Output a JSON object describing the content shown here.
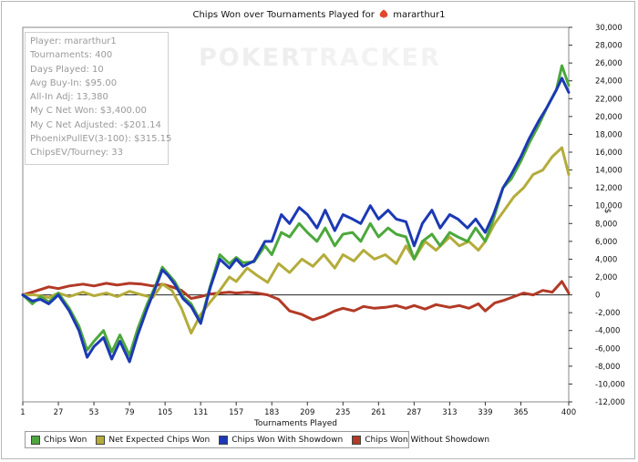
{
  "title": {
    "prefix": "Chips Won over Tournaments Played for",
    "player": "mararthur1"
  },
  "watermark": {
    "left": "POKER",
    "right": "TRACKER"
  },
  "stats": [
    "Player: mararthur1",
    "Tournaments: 400",
    "Days Played: 10",
    "Avg Buy-In: $95.00",
    "All-In Adj: 13,380",
    "My C Net Won: $3,400.00",
    "My C Net Adjusted: -$201.14",
    "PhoenixPullEV(3-100): $315.15",
    "ChipsEV/Tourney: 33"
  ],
  "legend": [
    {
      "label": "Chips Won",
      "color": "#4ca83c"
    },
    {
      "label": "Net Expected Chips Won",
      "color": "#b4ac3a"
    },
    {
      "label": "Chips Won With Showdown",
      "color": "#1c39b4"
    },
    {
      "label": "Chips Won Without Showdown",
      "color": "#b23a26"
    }
  ],
  "chart_data": {
    "type": "line",
    "xlabel": "Tournaments Played",
    "ylabel": "$",
    "xlim": [
      1,
      400
    ],
    "ylim": [
      -12000,
      30000
    ],
    "x_ticks": [
      1,
      27,
      53,
      79,
      105,
      131,
      157,
      183,
      209,
      235,
      261,
      287,
      313,
      339,
      365,
      400
    ],
    "y_ticks": [
      -12000,
      -10000,
      -8000,
      -6000,
      -4000,
      -2000,
      0,
      2000,
      4000,
      6000,
      8000,
      10000,
      12000,
      14000,
      16000,
      18000,
      20000,
      22000,
      24000,
      26000,
      28000,
      30000
    ],
    "y_tick_labels": [
      "-12,000",
      "-10,000",
      "-8,000",
      "-6,000",
      "-4,000",
      "-2,000",
      "0",
      "2,000",
      "4,000",
      "6,000",
      "8,000",
      "10,000",
      "12,000",
      "14,000",
      "16,000",
      "18,000",
      "20,000",
      "22,000",
      "24,000",
      "26,000",
      "28,000",
      "30,000"
    ],
    "grid": false,
    "legend_position": "bottom",
    "series": [
      {
        "name": "Chips Won",
        "color": "#4ca83c",
        "x": [
          1,
          8,
          14,
          20,
          27,
          35,
          42,
          48,
          53,
          60,
          66,
          72,
          79,
          85,
          92,
          98,
          103,
          107,
          112,
          118,
          124,
          131,
          138,
          145,
          152,
          157,
          162,
          170,
          178,
          183,
          190,
          196,
          203,
          209,
          216,
          222,
          229,
          235,
          242,
          248,
          255,
          261,
          268,
          274,
          281,
          287,
          293,
          300,
          306,
          313,
          319,
          326,
          332,
          339,
          345,
          352,
          358,
          365,
          371,
          378,
          384,
          391,
          395,
          400
        ],
        "y": [
          0,
          -1000,
          -200,
          -800,
          200,
          -1500,
          -3500,
          -6200,
          -5200,
          -4000,
          -6400,
          -4500,
          -6800,
          -3800,
          -1000,
          1000,
          3100,
          2400,
          1500,
          -200,
          -1000,
          -3000,
          1000,
          4500,
          3500,
          4200,
          3600,
          3700,
          5500,
          4500,
          7000,
          6500,
          8000,
          7000,
          6000,
          7500,
          5500,
          6800,
          7000,
          6000,
          8000,
          6500,
          7500,
          6800,
          6500,
          4000,
          6000,
          6800,
          5500,
          7000,
          6500,
          6000,
          7500,
          6000,
          8500,
          12000,
          13000,
          15000,
          17000,
          19000,
          21000,
          23000,
          25700,
          23500
        ]
      },
      {
        "name": "Net Expected Chips Won",
        "color": "#b4ac3a",
        "x": [
          1,
          10,
          20,
          27,
          35,
          45,
          53,
          62,
          70,
          79,
          88,
          96,
          103,
          110,
          117,
          124,
          131,
          138,
          145,
          152,
          157,
          165,
          172,
          180,
          188,
          196,
          205,
          213,
          221,
          229,
          235,
          243,
          250,
          258,
          266,
          274,
          281,
          287,
          295,
          303,
          313,
          320,
          327,
          334,
          339,
          346,
          353,
          360,
          367,
          374,
          381,
          388,
          395,
          400
        ],
        "y": [
          0,
          0,
          -300,
          200,
          -200,
          300,
          -100,
          200,
          -200,
          400,
          0,
          -300,
          1200,
          500,
          -1500,
          -4300,
          -2200,
          -800,
          500,
          2000,
          1500,
          3000,
          2200,
          1400,
          3500,
          2500,
          4000,
          3200,
          4500,
          3000,
          4500,
          3800,
          5000,
          4000,
          4500,
          3500,
          5500,
          4000,
          6000,
          5000,
          6500,
          5500,
          6000,
          5000,
          6000,
          8000,
          9500,
          11000,
          12000,
          13500,
          14000,
          15500,
          16500,
          13500
        ]
      },
      {
        "name": "Chips Won With Showdown",
        "color": "#1c39b4",
        "x": [
          1,
          8,
          14,
          20,
          27,
          35,
          42,
          48,
          53,
          60,
          66,
          72,
          79,
          85,
          92,
          98,
          103,
          107,
          112,
          118,
          124,
          131,
          138,
          145,
          152,
          157,
          162,
          170,
          178,
          183,
          190,
          196,
          203,
          209,
          216,
          222,
          229,
          235,
          242,
          248,
          255,
          261,
          268,
          274,
          281,
          287,
          293,
          300,
          306,
          313,
          319,
          326,
          332,
          339,
          345,
          352,
          358,
          365,
          371,
          378,
          384,
          391,
          395,
          400
        ],
        "y": [
          0,
          -700,
          -500,
          -1000,
          0,
          -1800,
          -4000,
          -7000,
          -5800,
          -4800,
          -7200,
          -5200,
          -7500,
          -4500,
          -1500,
          800,
          2800,
          2200,
          1200,
          -400,
          -1300,
          -3200,
          800,
          4000,
          3000,
          4000,
          3200,
          3800,
          6000,
          6000,
          9000,
          8000,
          9800,
          9000,
          7500,
          9500,
          7200,
          9000,
          8500,
          8000,
          10000,
          8500,
          9500,
          8500,
          8200,
          5500,
          8000,
          9500,
          7500,
          9000,
          8500,
          7500,
          8500,
          7000,
          9000,
          12000,
          13500,
          15500,
          17500,
          19500,
          21000,
          23000,
          24300,
          22700
        ]
      },
      {
        "name": "Chips Won Without Showdown",
        "color": "#b23a26",
        "x": [
          1,
          10,
          20,
          27,
          35,
          45,
          53,
          62,
          70,
          79,
          88,
          96,
          103,
          110,
          117,
          124,
          131,
          138,
          145,
          152,
          157,
          165,
          172,
          180,
          188,
          196,
          205,
          213,
          221,
          229,
          235,
          243,
          250,
          258,
          266,
          274,
          281,
          287,
          295,
          303,
          313,
          320,
          327,
          334,
          339,
          346,
          353,
          360,
          367,
          374,
          381,
          388,
          395,
          400
        ],
        "y": [
          0,
          400,
          900,
          700,
          1000,
          1200,
          1000,
          1300,
          1100,
          1300,
          1200,
          1000,
          1200,
          900,
          500,
          -400,
          -200,
          100,
          200,
          300,
          200,
          300,
          200,
          0,
          -500,
          -1800,
          -2200,
          -2800,
          -2400,
          -1800,
          -1500,
          -1800,
          -1300,
          -1500,
          -1400,
          -1200,
          -1500,
          -1200,
          -1600,
          -1100,
          -1400,
          -1200,
          -1500,
          -1000,
          -1800,
          -900,
          -600,
          -200,
          200,
          0,
          500,
          300,
          1500,
          200
        ]
      }
    ]
  }
}
